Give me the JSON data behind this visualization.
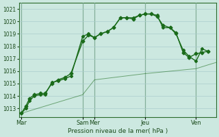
{
  "title": "",
  "xlabel": "Pression niveau de la mer( hPa )",
  "ylabel": "",
  "bg_color": "#cce8e0",
  "grid_color": "#aacccc",
  "line_color": "#1a6b1a",
  "ylim": [
    1012.3,
    1021.5
  ],
  "yticks": [
    1013,
    1014,
    1015,
    1016,
    1017,
    1018,
    1019,
    1020,
    1021
  ],
  "day_labels": [
    "Mar",
    "Sam",
    "Mer",
    "Jeu",
    "Ven"
  ],
  "day_positions": [
    0,
    52,
    62,
    105,
    148
  ],
  "xlim": [
    -2,
    165
  ],
  "series1_x": [
    0,
    4,
    7,
    11,
    16,
    20,
    26,
    31,
    37,
    42,
    52,
    57,
    62,
    67,
    73,
    78,
    84,
    89,
    95,
    100,
    105,
    110,
    115,
    120,
    126,
    131,
    137,
    142,
    148,
    153,
    158
  ],
  "series1_y": [
    1012.6,
    1013.2,
    1013.8,
    1014.1,
    1014.2,
    1014.2,
    1015.0,
    1015.3,
    1015.5,
    1015.8,
    1018.4,
    1018.9,
    1018.7,
    1019.0,
    1019.2,
    1019.5,
    1020.3,
    1020.3,
    1020.2,
    1020.5,
    1020.6,
    1020.6,
    1020.4,
    1019.7,
    1019.5,
    1019.1,
    1017.5,
    1017.1,
    1017.4,
    1017.5,
    1017.6
  ],
  "series2_x": [
    0,
    4,
    7,
    11,
    16,
    20,
    26,
    31,
    37,
    42,
    52,
    57,
    62,
    67,
    73,
    78,
    84,
    89,
    95,
    100,
    105,
    110,
    115,
    120,
    126,
    131,
    137,
    142,
    148,
    153,
    158
  ],
  "series2_y": [
    1012.6,
    1013.0,
    1013.6,
    1014.0,
    1014.1,
    1014.1,
    1015.1,
    1015.2,
    1015.4,
    1015.6,
    1018.8,
    1019.0,
    1018.7,
    1019.0,
    1019.2,
    1019.5,
    1020.3,
    1020.3,
    1020.3,
    1020.5,
    1020.6,
    1020.6,
    1020.5,
    1019.5,
    1019.5,
    1019.0,
    1017.7,
    1017.2,
    1016.8,
    1017.8,
    1017.6
  ],
  "series3_x": [
    0,
    52,
    62,
    105,
    148,
    158,
    165
  ],
  "series3_y": [
    1012.6,
    1014.1,
    1015.3,
    1015.8,
    1016.2,
    1016.5,
    1016.7
  ],
  "vline_positions": [
    0,
    52,
    62,
    105,
    148
  ],
  "marker_size": 2.5,
  "linewidth": 1.0
}
